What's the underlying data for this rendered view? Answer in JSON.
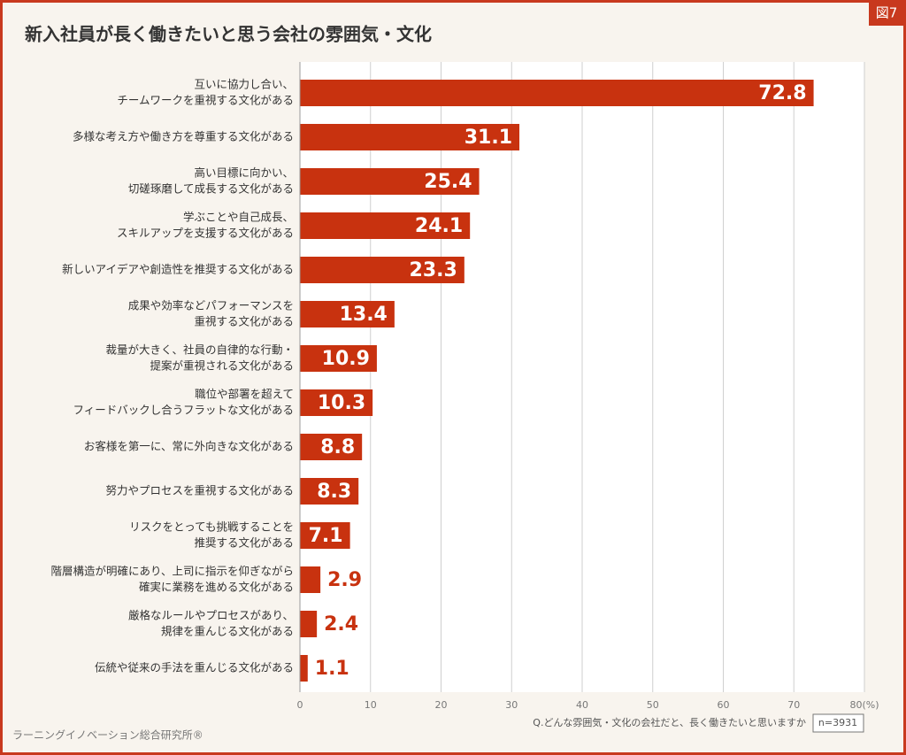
{
  "chart_data": {
    "type": "bar",
    "orientation": "horizontal",
    "figure_label": "図7",
    "title": "新入社員が長く働きたいと思う会社の雰囲気・文化",
    "categories": [
      [
        "互いに協力し合い、",
        "チームワークを重視する文化がある"
      ],
      [
        "多様な考え方や働き方を尊重する文化がある"
      ],
      [
        "高い目標に向かい、",
        "切磋琢磨して成長する文化がある"
      ],
      [
        "学ぶことや自己成長、",
        "スキルアップを支援する文化がある"
      ],
      [
        "新しいアイデアや創造性を推奨する文化がある"
      ],
      [
        "成果や効率などパフォーマンスを",
        "重視する文化がある"
      ],
      [
        "裁量が大きく、社員の自律的な行動・",
        "提案が重視される文化がある"
      ],
      [
        "職位や部署を超えて",
        "フィードバックし合うフラットな文化がある"
      ],
      [
        "お客様を第一に、常に外向きな文化がある"
      ],
      [
        "努力やプロセスを重視する文化がある"
      ],
      [
        "リスクをとっても挑戦することを",
        "推奨する文化がある"
      ],
      [
        "階層構造が明確にあり、上司に指示を仰ぎながら",
        "確実に業務を進める文化がある"
      ],
      [
        "厳格なルールやプロセスがあり、",
        "規律を重んじる文化がある"
      ],
      [
        "伝統や従来の手法を重んじる文化がある"
      ]
    ],
    "values": [
      72.8,
      31.1,
      25.4,
      24.1,
      23.3,
      13.4,
      10.9,
      10.3,
      8.8,
      8.3,
      7.1,
      2.9,
      2.4,
      1.1
    ],
    "color": "#c8320f",
    "xlim": [
      0,
      80
    ],
    "xticks": [
      0,
      10,
      20,
      30,
      40,
      50,
      60,
      70,
      {
        "value": 80,
        "label": "80(%)"
      }
    ],
    "grid": true,
    "note": "Q.どんな雰囲気・文化の会社だと、長く働きたいと思いますか",
    "sample": "n=3931",
    "source": "ラーニングイノベーション総合研究所®"
  }
}
